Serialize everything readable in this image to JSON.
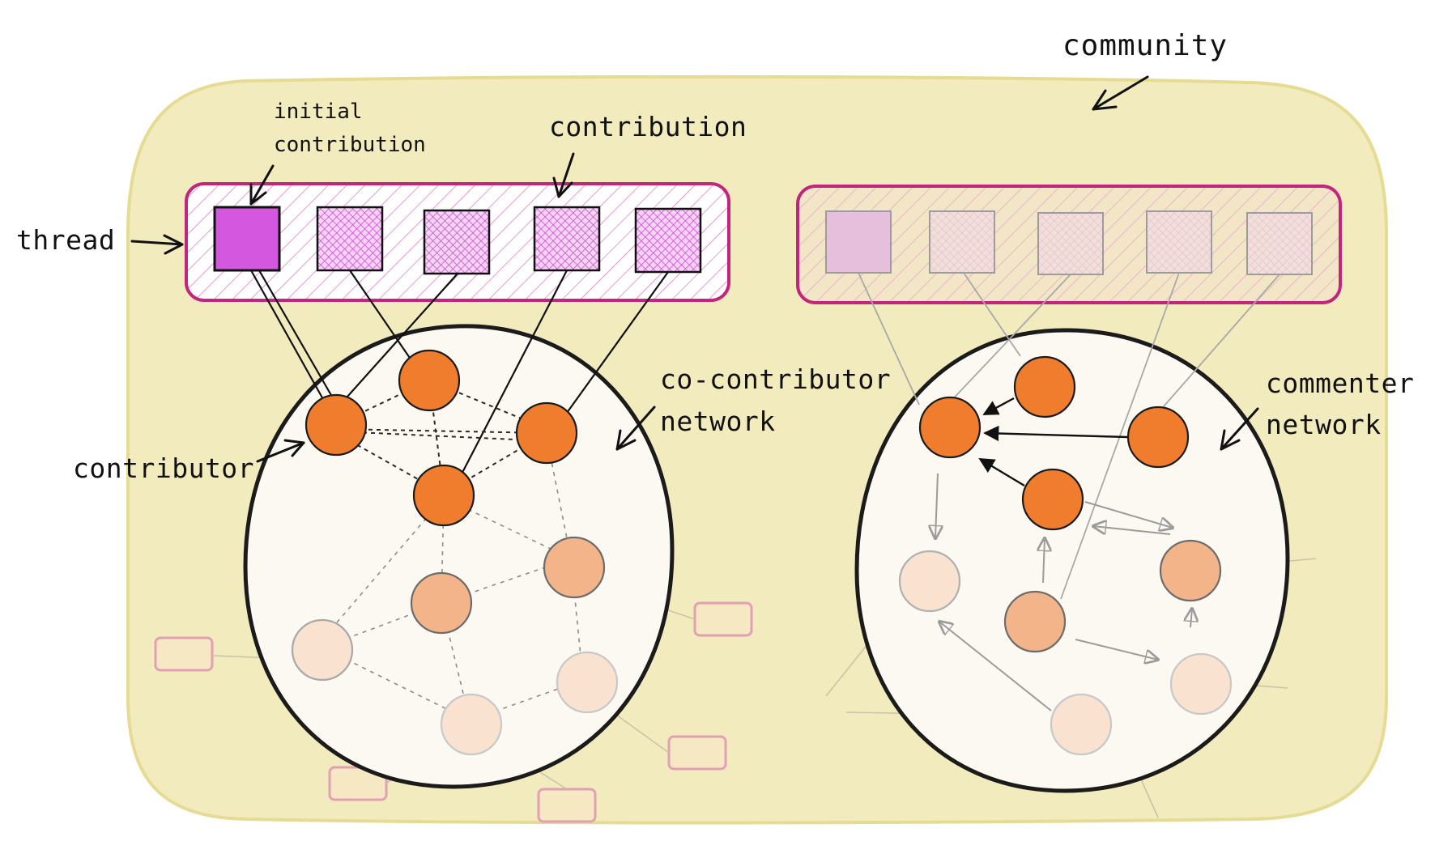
{
  "labels": {
    "community": "community",
    "initial_contribution_line1": "initial",
    "initial_contribution_line2": "contribution",
    "contribution": "contribution",
    "thread": "thread",
    "contributor": "contributor",
    "cocontributor_line1": "co-contributor",
    "cocontributor_line2": "network",
    "commenter_line1": "commenter",
    "commenter_line2": "network"
  },
  "colors": {
    "community_fill": "#f2ebbd",
    "community_stroke": "#e6db93",
    "thread_stroke": "#c2257e",
    "hatch": "#e59ad0",
    "initial_square": "#d457e0",
    "square_hatch": "#c950d3",
    "node_active": "#f07d2d",
    "node_mid": "#f4b489",
    "node_faint": "#f9e2d0",
    "network_fill": "#fbf9f1",
    "outline": "#1b1b1b"
  }
}
